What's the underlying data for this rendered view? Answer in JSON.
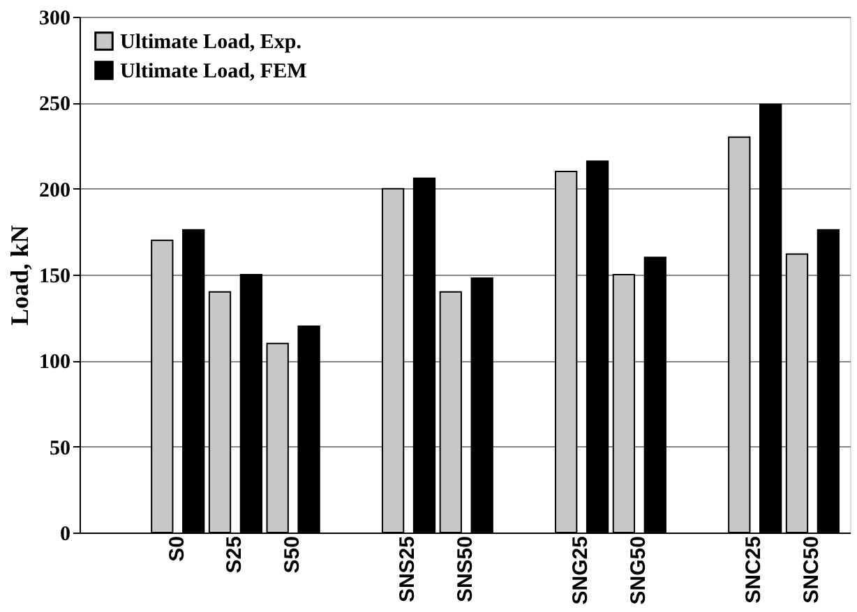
{
  "chart_data": {
    "type": "bar",
    "ylabel": "Load, kN",
    "categories": [
      null,
      "S0",
      "S25",
      "S50",
      null,
      "SNS25",
      "SNS50",
      null,
      "SNG25",
      "SNG50",
      null,
      "SNC25",
      "SNC50"
    ],
    "series": [
      {
        "name": "Ultimate Load, Exp.",
        "color": "#c8c8c8",
        "values": [
          null,
          170,
          140,
          110,
          null,
          200,
          140,
          null,
          210,
          150,
          null,
          230,
          162
        ]
      },
      {
        "name": "Ultimate Load, FEM",
        "color": "#000000",
        "values": [
          null,
          176,
          150,
          120,
          null,
          206,
          148,
          null,
          216,
          160,
          null,
          249,
          176
        ]
      }
    ],
    "ylim": [
      0,
      300
    ],
    "yticks": [
      0,
      50,
      100,
      150,
      200,
      250,
      300
    ],
    "grid": "y",
    "legend": "top left"
  }
}
